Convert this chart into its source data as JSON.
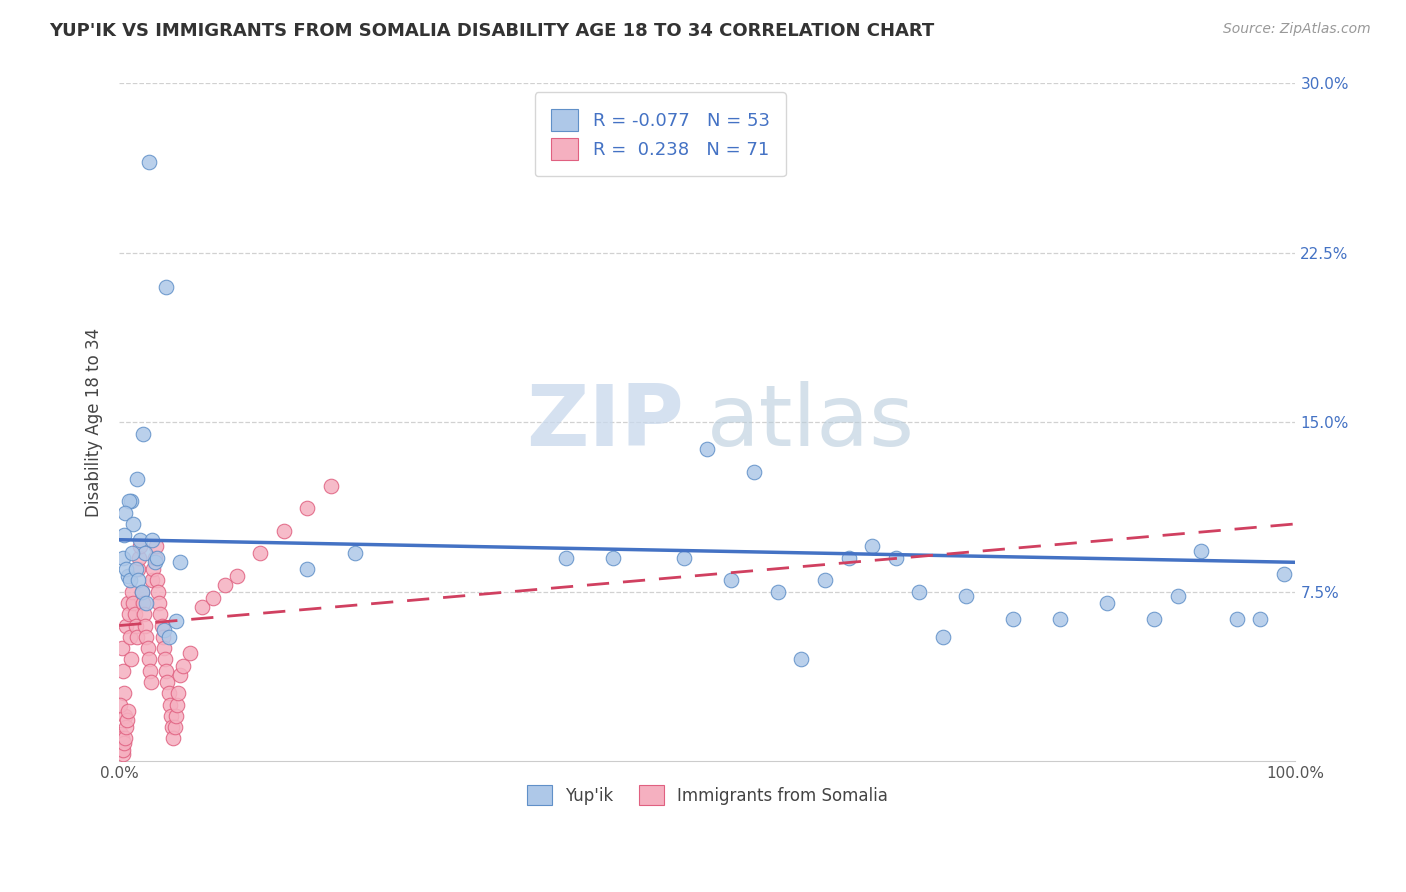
{
  "title": "YUP'IK VS IMMIGRANTS FROM SOMALIA DISABILITY AGE 18 TO 34 CORRELATION CHART",
  "source": "Source: ZipAtlas.com",
  "ylabel": "Disability Age 18 to 34",
  "xlim": [
    0.0,
    1.0
  ],
  "ylim": [
    0.0,
    0.3
  ],
  "xticks": [
    0.0,
    0.25,
    0.5,
    0.75,
    1.0
  ],
  "xticklabels": [
    "0.0%",
    "",
    "",
    "",
    "100.0%"
  ],
  "ytick_positions": [
    0.075,
    0.15,
    0.225,
    0.3
  ],
  "yticklabels_right": [
    "7.5%",
    "15.0%",
    "22.5%",
    "30.0%"
  ],
  "blue_r": -0.077,
  "blue_n": 53,
  "pink_r": 0.238,
  "pink_n": 71,
  "blue_dot_color": "#aec8e8",
  "blue_edge_color": "#6090c8",
  "pink_dot_color": "#f5b0c0",
  "pink_edge_color": "#e06080",
  "blue_line_color": "#4472c4",
  "pink_line_color": "#d04060",
  "watermark_zip_color": "#c8d8ec",
  "watermark_atlas_color": "#b8ccdc",
  "blue_x": [
    0.025,
    0.04,
    0.02,
    0.015,
    0.01,
    0.008,
    0.005,
    0.012,
    0.018,
    0.022,
    0.03,
    0.007,
    0.004,
    0.003,
    0.006,
    0.009,
    0.011,
    0.014,
    0.016,
    0.019,
    0.023,
    0.028,
    0.032,
    0.038,
    0.042,
    0.048,
    0.052,
    0.16,
    0.2,
    0.38,
    0.42,
    0.48,
    0.52,
    0.56,
    0.6,
    0.64,
    0.68,
    0.72,
    0.76,
    0.8,
    0.84,
    0.88,
    0.9,
    0.92,
    0.95,
    0.97,
    0.99,
    0.5,
    0.54,
    0.58,
    0.62,
    0.66,
    0.7
  ],
  "blue_y": [
    0.265,
    0.21,
    0.145,
    0.125,
    0.115,
    0.115,
    0.11,
    0.105,
    0.098,
    0.092,
    0.088,
    0.082,
    0.1,
    0.09,
    0.085,
    0.08,
    0.092,
    0.085,
    0.08,
    0.075,
    0.07,
    0.098,
    0.09,
    0.058,
    0.055,
    0.062,
    0.088,
    0.085,
    0.092,
    0.09,
    0.09,
    0.09,
    0.08,
    0.075,
    0.08,
    0.095,
    0.075,
    0.073,
    0.063,
    0.063,
    0.07,
    0.063,
    0.073,
    0.093,
    0.063,
    0.063,
    0.083,
    0.138,
    0.128,
    0.045,
    0.09,
    0.09,
    0.055
  ],
  "pink_x": [
    0.002,
    0.003,
    0.004,
    0.005,
    0.006,
    0.007,
    0.008,
    0.009,
    0.01,
    0.011,
    0.012,
    0.013,
    0.014,
    0.015,
    0.016,
    0.017,
    0.018,
    0.019,
    0.02,
    0.021,
    0.022,
    0.023,
    0.024,
    0.025,
    0.026,
    0.027,
    0.028,
    0.029,
    0.03,
    0.031,
    0.032,
    0.033,
    0.034,
    0.035,
    0.036,
    0.037,
    0.038,
    0.039,
    0.04,
    0.041,
    0.042,
    0.043,
    0.044,
    0.045,
    0.046,
    0.047,
    0.048,
    0.049,
    0.05,
    0.052,
    0.054,
    0.06,
    0.07,
    0.08,
    0.09,
    0.1,
    0.12,
    0.14,
    0.16,
    0.18,
    0.001,
    0.0015,
    0.002,
    0.0025,
    0.003,
    0.0035,
    0.004,
    0.0045,
    0.0055,
    0.0065,
    0.007
  ],
  "pink_y": [
    0.05,
    0.04,
    0.03,
    0.02,
    0.06,
    0.07,
    0.065,
    0.055,
    0.045,
    0.075,
    0.07,
    0.065,
    0.06,
    0.055,
    0.085,
    0.09,
    0.095,
    0.075,
    0.07,
    0.065,
    0.06,
    0.055,
    0.05,
    0.045,
    0.04,
    0.035,
    0.08,
    0.085,
    0.09,
    0.095,
    0.08,
    0.075,
    0.07,
    0.065,
    0.06,
    0.055,
    0.05,
    0.045,
    0.04,
    0.035,
    0.03,
    0.025,
    0.02,
    0.015,
    0.01,
    0.015,
    0.02,
    0.025,
    0.03,
    0.038,
    0.042,
    0.048,
    0.068,
    0.072,
    0.078,
    0.082,
    0.092,
    0.102,
    0.112,
    0.122,
    0.025,
    0.012,
    0.01,
    0.005,
    0.003,
    0.005,
    0.008,
    0.01,
    0.015,
    0.018,
    0.022
  ],
  "blue_line_x0": 0.0,
  "blue_line_y0": 0.098,
  "blue_line_x1": 1.0,
  "blue_line_y1": 0.088,
  "pink_line_x0": 0.0,
  "pink_line_y0": 0.06,
  "pink_line_x1": 1.0,
  "pink_line_y1": 0.105
}
